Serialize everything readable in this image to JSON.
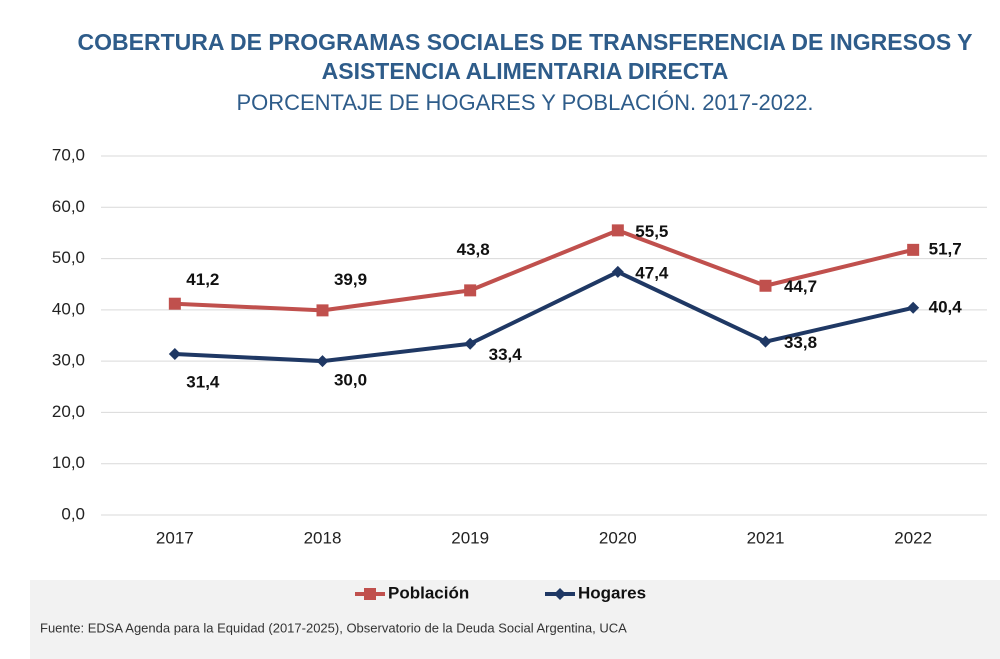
{
  "chart_data": {
    "type": "line",
    "title": [
      "COBERTURA DE PROGRAMAS SOCIALES DE TRANSFERENCIA DE INGRESOS Y",
      "ASISTENCIA ALIMENTARIA DIRECTA"
    ],
    "subtitle": "PORCENTAJE DE HOGARES Y POBLACIÓN. 2017-2022.",
    "categories": [
      "2017",
      "2018",
      "2019",
      "2020",
      "2021",
      "2022"
    ],
    "series": [
      {
        "name": "Población",
        "color": "#c0504d",
        "marker": "square",
        "values": [
          41.2,
          39.9,
          43.8,
          55.5,
          44.7,
          51.7
        ],
        "value_labels": [
          "41,2",
          "39,9",
          "43,8",
          "55,5",
          "44,7",
          "51,7"
        ]
      },
      {
        "name": "Hogares",
        "color": "#1f3864",
        "marker": "diamond",
        "values": [
          31.4,
          30.0,
          33.4,
          47.4,
          33.8,
          40.4
        ],
        "value_labels": [
          "31,4",
          "30,0",
          "33,4",
          "47,4",
          "33,8",
          "40,4"
        ]
      }
    ],
    "ylim": [
      0,
      70
    ],
    "yticks": [
      {
        "value": 0,
        "label": "0,0"
      },
      {
        "value": 10,
        "label": "10,0"
      },
      {
        "value": 20,
        "label": "20,0"
      },
      {
        "value": 30,
        "label": "30,0"
      },
      {
        "value": 40,
        "label": "40,0"
      },
      {
        "value": 50,
        "label": "50,0"
      },
      {
        "value": 60,
        "label": "60,0"
      },
      {
        "value": 70,
        "label": "70,0"
      }
    ],
    "grid": true,
    "legend": "bottom",
    "source": "Fuente: EDSA Agenda para la Equidad (2017-2025), Observatorio de la Deuda Social Argentina, UCA"
  }
}
